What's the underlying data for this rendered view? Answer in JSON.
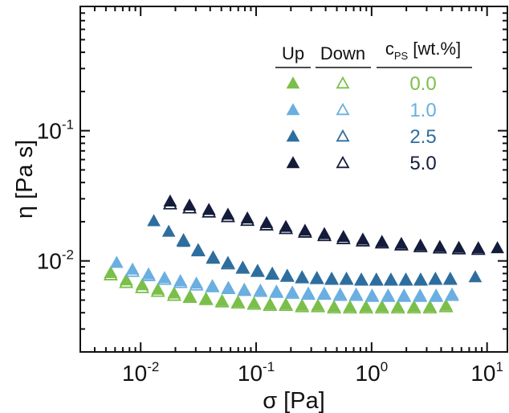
{
  "chart_data": {
    "type": "scatter",
    "title": "",
    "xlabel": "σ [Pa]",
    "ylabel": "η [Pa s]",
    "xscale": "log",
    "yscale": "log",
    "xlim": [
      0.003,
      15
    ],
    "ylim": [
      0.002,
      0.9
    ],
    "grid": false,
    "legend": {
      "placement": "top-right",
      "col_up": "Up",
      "col_down": "Down",
      "col_c_main": "c",
      "col_c_sub": "PS",
      "col_c_unit": " [wt.%]"
    },
    "x_ticks": [
      {
        "value": 0.01,
        "base": "10",
        "exp": "-2"
      },
      {
        "value": 0.1,
        "base": "10",
        "exp": "-1"
      },
      {
        "value": 1,
        "base": "10",
        "exp": "0"
      },
      {
        "value": 10,
        "base": "10",
        "exp": "1"
      }
    ],
    "y_ticks": [
      {
        "value": 0.01,
        "base": "10",
        "exp": "-2"
      },
      {
        "value": 0.1,
        "base": "10",
        "exp": "-1"
      }
    ],
    "series": [
      {
        "name": "0.0",
        "color": "#7bbf4a",
        "up": {
          "x": [
            0.0055,
            0.0075,
            0.0103,
            0.0141,
            0.0195,
            0.0267,
            0.0368,
            0.0507,
            0.0697,
            0.096,
            0.132,
            0.181,
            0.25,
            0.343,
            0.473,
            0.65,
            0.895,
            1.23,
            1.69,
            2.33,
            3.2,
            4.41
          ],
          "y": [
            0.0082,
            0.0072,
            0.0066,
            0.0061,
            0.0057,
            0.0054,
            0.0052,
            0.005,
            0.0049,
            0.0048,
            0.0047,
            0.0047,
            0.0046,
            0.0046,
            0.0045,
            0.0045,
            0.0045,
            0.0045,
            0.0045,
            0.0045,
            0.0045,
            0.0046
          ]
        },
        "down": {
          "x": [
            0.0055,
            0.0075,
            0.0103,
            0.0141,
            0.0195,
            0.0267,
            0.0368,
            0.0507,
            0.0697,
            0.096,
            0.132,
            0.181,
            0.25,
            0.343,
            0.473,
            0.65,
            0.895,
            1.23,
            1.69,
            2.33,
            3.2,
            4.41
          ],
          "y": [
            0.0079,
            0.0069,
            0.0063,
            0.0059,
            0.0055,
            0.0053,
            0.0051,
            0.0049,
            0.0048,
            0.0047,
            0.0046,
            0.0046,
            0.0045,
            0.0045,
            0.0044,
            0.0044,
            0.0044,
            0.0044,
            0.0044,
            0.0044,
            0.0044,
            0.0045
          ]
        }
      },
      {
        "name": "1.0",
        "color": "#6aafe0",
        "up": {
          "x": [
            0.0062,
            0.0085,
            0.0117,
            0.0161,
            0.0221,
            0.0304,
            0.0418,
            0.0575,
            0.079,
            0.109,
            0.15,
            0.206,
            0.283,
            0.389,
            0.535,
            0.735,
            1.01,
            1.39,
            1.91,
            2.63,
            3.62,
            4.97
          ],
          "y": [
            0.0098,
            0.0087,
            0.008,
            0.0075,
            0.0071,
            0.0068,
            0.0065,
            0.0063,
            0.0061,
            0.006,
            0.0059,
            0.0058,
            0.0057,
            0.0057,
            0.0056,
            0.0056,
            0.0055,
            0.0055,
            0.0055,
            0.0055,
            0.0055,
            0.0056
          ]
        },
        "down": {
          "x": [
            0.0085,
            0.0117,
            0.0161,
            0.0221,
            0.0304,
            0.0418,
            0.0575,
            0.079,
            0.109,
            0.15,
            0.206,
            0.283,
            0.389,
            0.535,
            0.735,
            1.01,
            1.39,
            1.91,
            2.63,
            3.62,
            4.97
          ],
          "y": [
            0.0084,
            0.0078,
            0.0073,
            0.0069,
            0.0066,
            0.0064,
            0.0062,
            0.006,
            0.0059,
            0.0058,
            0.0057,
            0.0056,
            0.0056,
            0.0055,
            0.0055,
            0.0054,
            0.0054,
            0.0054,
            0.0054,
            0.0054,
            0.0055
          ]
        }
      },
      {
        "name": "2.5",
        "color": "#2e6e9e",
        "up": {
          "x": [
            0.013,
            0.0175,
            0.0235,
            0.0315,
            0.0424,
            0.057,
            0.0766,
            0.103,
            0.138,
            0.186,
            0.25,
            0.336,
            0.451,
            0.606,
            0.815,
            1.1,
            1.47,
            1.98,
            2.66,
            3.57,
            4.8,
            7.9
          ],
          "y": [
            0.0205,
            0.017,
            0.0142,
            0.0123,
            0.0108,
            0.0098,
            0.009,
            0.0085,
            0.0081,
            0.0078,
            0.0076,
            0.0075,
            0.0074,
            0.0074,
            0.0073,
            0.0073,
            0.0073,
            0.0073,
            0.0073,
            0.0074,
            0.0074,
            0.0076
          ]
        },
        "down": {
          "x": [
            0.0235,
            0.0315,
            0.0424,
            0.057,
            0.0766,
            0.103,
            0.138,
            0.186,
            0.25,
            0.336,
            0.451,
            0.606,
            0.815,
            1.1,
            1.47,
            1.98,
            2.66,
            3.57,
            4.8
          ],
          "y": [
            0.0145,
            0.0121,
            0.0106,
            0.0096,
            0.0089,
            0.0084,
            0.008,
            0.0077,
            0.0075,
            0.0074,
            0.0073,
            0.0073,
            0.0072,
            0.0072,
            0.0072,
            0.0072,
            0.0072,
            0.0073,
            0.0073
          ]
        }
      },
      {
        "name": "5.0",
        "color": "#141c3c",
        "up": {
          "x": [
            0.018,
            0.0265,
            0.039,
            0.057,
            0.084,
            0.123,
            0.181,
            0.265,
            0.39,
            0.57,
            0.84,
            1.23,
            1.81,
            2.65,
            3.9,
            5.7,
            8.4,
            12.3
          ],
          "y": [
            0.029,
            0.027,
            0.025,
            0.023,
            0.0215,
            0.0198,
            0.0185,
            0.0173,
            0.0163,
            0.0155,
            0.0148,
            0.0142,
            0.0137,
            0.0133,
            0.013,
            0.0128,
            0.0127,
            0.0127
          ]
        },
        "down": {
          "x": [
            0.018,
            0.0265,
            0.039,
            0.057,
            0.084,
            0.123,
            0.181,
            0.265,
            0.39,
            0.57,
            0.84,
            1.23,
            1.81,
            2.65,
            3.9,
            5.7,
            8.4
          ],
          "y": [
            0.0277,
            0.0258,
            0.024,
            0.0221,
            0.0207,
            0.0191,
            0.0179,
            0.0168,
            0.0158,
            0.015,
            0.0144,
            0.0139,
            0.0134,
            0.013,
            0.0127,
            0.0125,
            0.0124
          ]
        }
      }
    ]
  }
}
